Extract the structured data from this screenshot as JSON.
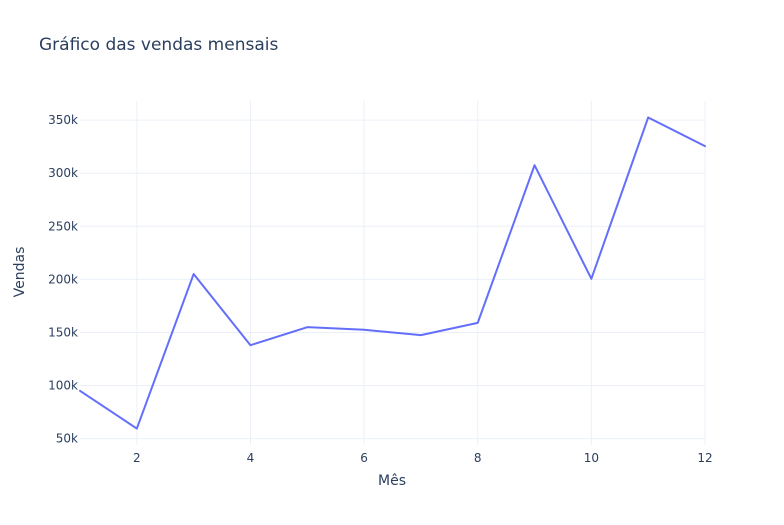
{
  "chart_data": {
    "type": "line",
    "title": "Gráfico das vendas mensais",
    "xlabel": "Mês",
    "ylabel": "Vendas",
    "x": [
      1,
      2,
      3,
      4,
      5,
      6,
      7,
      8,
      9,
      10,
      11,
      12
    ],
    "series": [
      {
        "values": [
          95000,
          59500,
          205000,
          138000,
          155000,
          152500,
          147500,
          159000,
          307500,
          200500,
          352500,
          325500
        ]
      }
    ],
    "xlim": [
      1,
      12
    ],
    "ylim": [
      44000,
      368000
    ],
    "x_ticks": [
      2,
      4,
      6,
      8,
      10,
      12
    ],
    "x_tick_labels": [
      "2",
      "4",
      "6",
      "8",
      "10",
      "12"
    ],
    "y_ticks": [
      50000,
      100000,
      150000,
      200000,
      250000,
      300000,
      350000
    ],
    "y_tick_labels": [
      "50k",
      "100k",
      "150k",
      "200k",
      "250k",
      "300k",
      "350k"
    ],
    "grid": true,
    "legend": "none",
    "colors": {
      "series": "#636efa",
      "grid": "#ebf0f8",
      "text": "#2a3f5f",
      "background": "#ffffff"
    }
  }
}
